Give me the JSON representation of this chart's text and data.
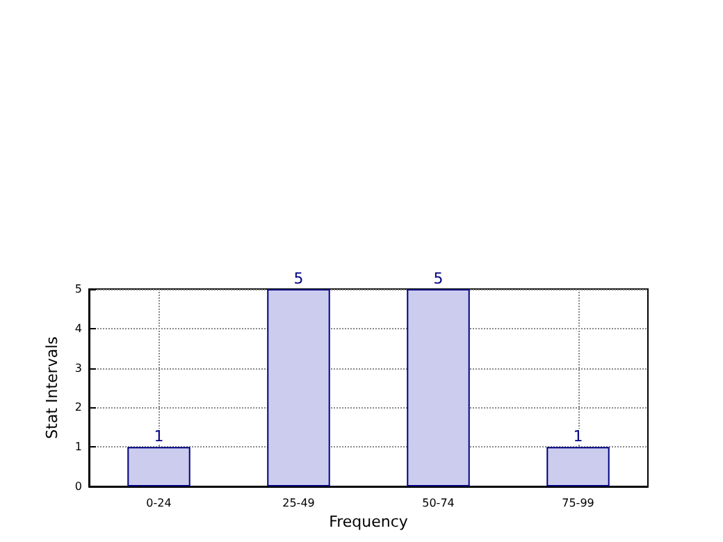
{
  "chart_data": {
    "type": "bar",
    "xlabel": "Frequency",
    "ylabel": "Stat Intervals",
    "categories": [
      "0-24",
      "25-49",
      "50-74",
      "75-99"
    ],
    "values": [
      1,
      5,
      5,
      1
    ],
    "color": "#ccccee",
    "ylim": [
      0,
      5
    ],
    "yticks": [
      0,
      1,
      2,
      3,
      4,
      5
    ],
    "grid": true,
    "data_labels": true
  }
}
